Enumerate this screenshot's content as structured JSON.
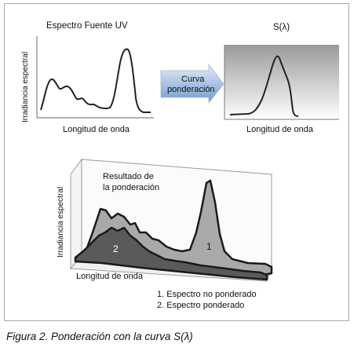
{
  "top_left_chart": {
    "title": "Espectro Fuente UV",
    "ylabel": "Irradiancia espectral",
    "xlabel": "Longitud de onda"
  },
  "arrow": {
    "line1": "Curva",
    "line2": "ponderación"
  },
  "top_right_chart": {
    "title": "S(λ)",
    "xlabel": "Longitud de onda"
  },
  "bottom_chart": {
    "ylabel": "Irradiancia espectral",
    "xlabel": "Longitud de onda",
    "annotation_line1": "Resultado de",
    "annotation_line2": "la ponderación",
    "series1_marker": "1",
    "series2_marker": "2",
    "legend": [
      "1. Espectro no ponderado",
      "2. Espectro ponderado"
    ]
  },
  "caption": "Figura 2. Ponderación con la curva S(λ)",
  "colors": {
    "curve": "#222222",
    "series1_fill": "#a9a9a9",
    "series2_fill": "#5a5a5a",
    "series_edge": "#1a1a1a",
    "arrow_top": "#e3e9f2",
    "arrow_bottom": "#6f9bd3",
    "sl_gradient_top": "#9a9a9a",
    "sl_gradient_bottom": "#ffffff"
  }
}
